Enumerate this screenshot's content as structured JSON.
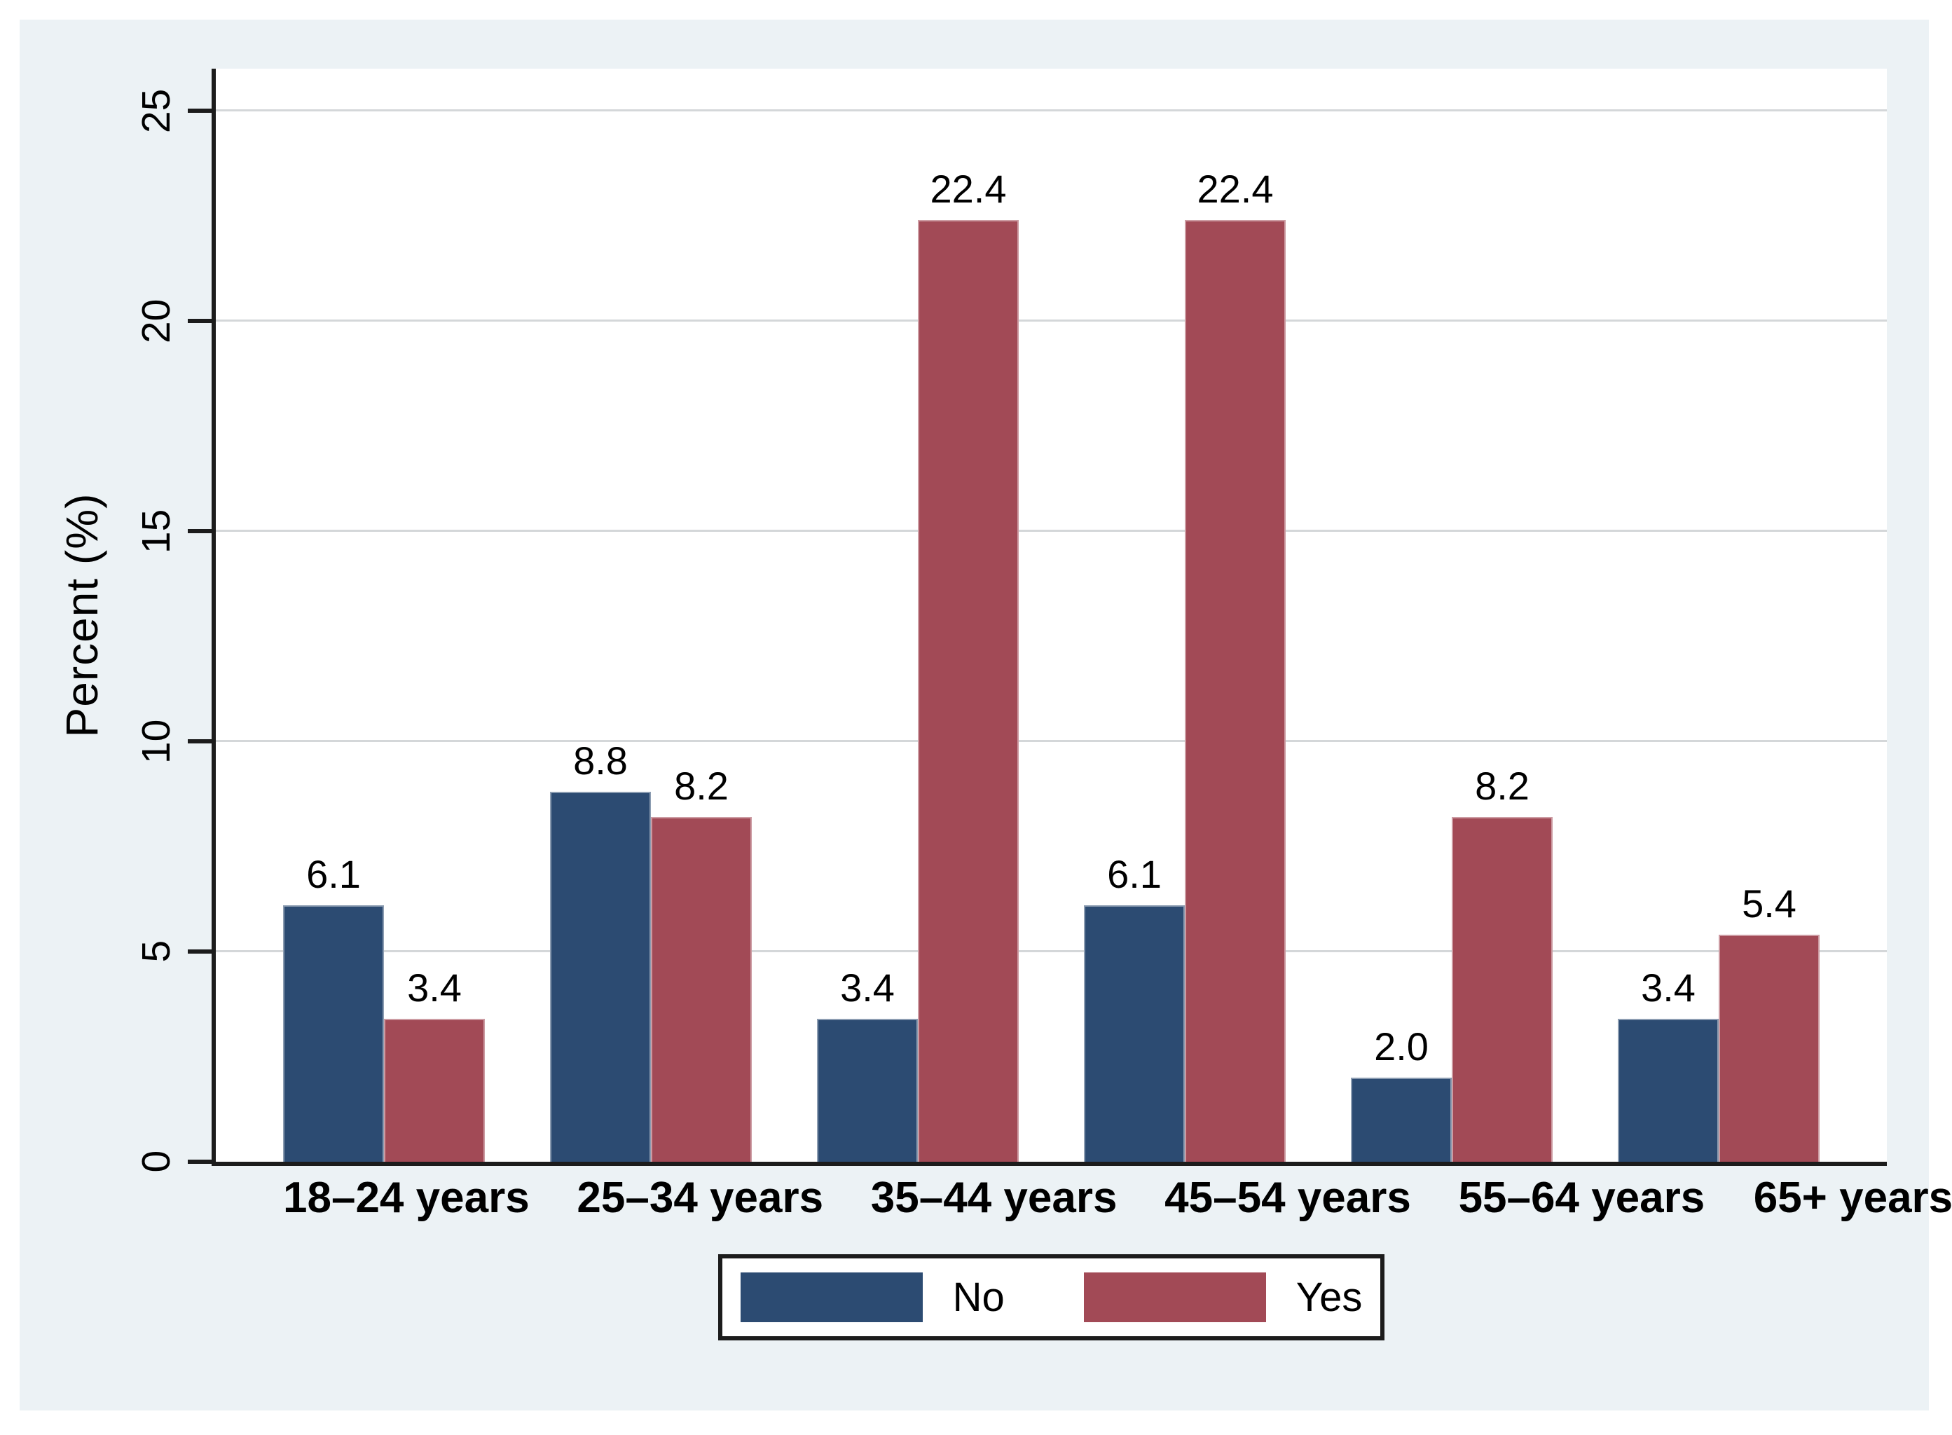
{
  "chart_data": {
    "type": "bar",
    "title": "",
    "categories": [
      "18–24 years",
      "25–34 years",
      "35–44 years",
      "45–54 years",
      "55–64 years",
      "65+ years"
    ],
    "series": [
      {
        "name": "No",
        "color": "#2c4b72",
        "values": [
          6.1,
          8.8,
          3.4,
          6.1,
          2.0,
          3.4
        ],
        "value_labels": [
          "6.1",
          "8.8",
          "3.4",
          "6.1",
          "2.0",
          "3.4"
        ]
      },
      {
        "name": "Yes",
        "color": "#a24a56",
        "values": [
          3.4,
          8.2,
          22.4,
          22.4,
          8.2,
          5.4
        ],
        "value_labels": [
          "3.4",
          "8.2",
          "22.4",
          "22.4",
          "8.2",
          "5.4"
        ]
      }
    ],
    "xlabel": "",
    "ylabel": "Percent (%)",
    "yticks": [
      0,
      5,
      10,
      15,
      20,
      25
    ],
    "ytick_labels": [
      "0",
      "5",
      "10",
      "15",
      "20",
      "25"
    ],
    "ylim": [
      0,
      26
    ],
    "grid": true,
    "bar_value_labels_shown": true,
    "legend_position": "bottom-center",
    "legend_entries": [
      {
        "label": "No",
        "color": "#2c4b72"
      },
      {
        "label": "Yes",
        "color": "#a24a56"
      }
    ]
  },
  "colors": {
    "figure_background": "#ecf2f5",
    "page_background": "#ffffff",
    "plot_background": "#ffffff",
    "gridline": "#d4d7d9",
    "axis": "#1c1c1c",
    "text": "#000000",
    "series_no": "#2c4b72",
    "series_yes": "#a24a56"
  }
}
